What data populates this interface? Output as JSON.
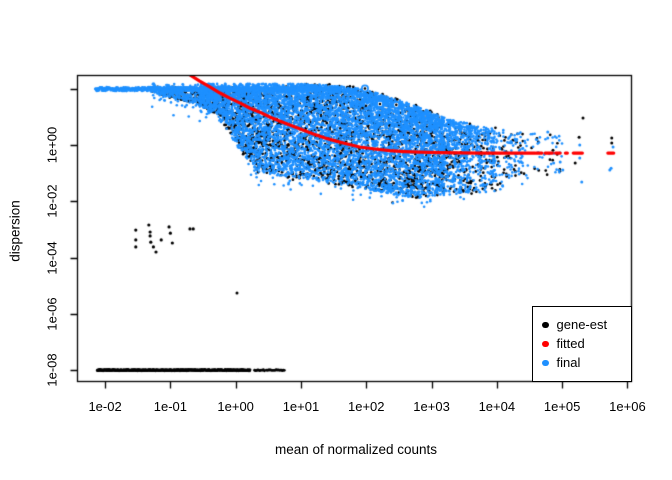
{
  "page": {
    "background": "#ffffff"
  },
  "chart_data": {
    "type": "scatter",
    "title": "",
    "xlabel": "mean of normalized counts",
    "ylabel": "dispersion",
    "x_scale": "log10",
    "y_scale": "log10",
    "xlim_log10": [
      -2.43,
      6.07
    ],
    "ylim_log10": [
      -8.42,
      2.49
    ],
    "grid": false,
    "frame_color": "#000000",
    "background": "#ffffff",
    "x_ticks": [
      {
        "log10": -2,
        "label": "1e-02"
      },
      {
        "log10": -1,
        "label": "1e-01"
      },
      {
        "log10": 0,
        "label": "1e+00"
      },
      {
        "log10": 1,
        "label": "1e+01"
      },
      {
        "log10": 2,
        "label": "1e+02"
      },
      {
        "log10": 3,
        "label": "1e+03"
      },
      {
        "log10": 4,
        "label": "1e+04"
      },
      {
        "log10": 5,
        "label": "1e+05"
      },
      {
        "log10": 6,
        "label": "1e+06"
      }
    ],
    "y_ticks": [
      {
        "log10": -8,
        "label": "1e-08"
      },
      {
        "log10": -6,
        "label": "1e-06"
      },
      {
        "log10": -4,
        "label": "1e-04"
      },
      {
        "log10": -2,
        "label": "1e-02"
      },
      {
        "log10": 0,
        "label": "1e+00"
      },
      {
        "log10": 2,
        "label": ""
      }
    ],
    "legend": {
      "position": "bottom-right",
      "items": [
        {
          "label": "gene-est",
          "color": "#000000"
        },
        {
          "label": "fitted",
          "color": "#ff0000"
        },
        {
          "label": "final",
          "color": "#1e90ff"
        }
      ]
    },
    "series": {
      "colors": {
        "gene_est": "#000000",
        "fitted": "#ff0000",
        "final": "#1e90ff"
      },
      "fitted_curve": {
        "points_log10": [
          [
            -0.7,
            2.49
          ],
          [
            -0.55,
            2.27
          ],
          [
            -0.39,
            2.06
          ],
          [
            -0.24,
            1.85
          ],
          [
            -0.09,
            1.67
          ],
          [
            0.07,
            1.49
          ],
          [
            0.22,
            1.31
          ],
          [
            0.37,
            1.17
          ],
          [
            0.53,
            0.99
          ],
          [
            0.68,
            0.85
          ],
          [
            0.83,
            0.71
          ],
          [
            0.99,
            0.57
          ],
          [
            1.19,
            0.39
          ],
          [
            1.37,
            0.25
          ],
          [
            1.54,
            0.14
          ],
          [
            1.71,
            0.04
          ],
          [
            1.9,
            -0.07
          ],
          [
            2.13,
            -0.14
          ],
          [
            2.36,
            -0.2
          ],
          [
            2.59,
            -0.23
          ],
          [
            2.82,
            -0.25
          ],
          [
            3.13,
            -0.27
          ],
          [
            3.44,
            -0.28
          ],
          [
            3.74,
            -0.284
          ],
          [
            4.05,
            -0.284
          ],
          [
            4.58,
            -0.284
          ]
        ],
        "dash_segments_log10": [
          [
            4.6,
            4.69
          ],
          [
            4.74,
            4.85
          ],
          [
            4.9,
            4.97
          ],
          [
            5.05,
            5.08
          ],
          [
            5.17,
            5.31
          ],
          [
            5.7,
            5.79
          ]
        ],
        "dash_y_log10": -0.284,
        "line_width": 3.2
      },
      "cloud": {
        "seed": 20240613,
        "blue_count": 7600,
        "black_count": 2400,
        "point_radius": 1.3,
        "envelope_t": [
          -1.3,
          -1.0,
          -0.55,
          -0.19,
          0.02,
          0.33,
          0.76,
          1.2,
          1.6,
          2.0,
          2.4,
          2.8,
          3.2,
          3.6,
          4.0,
          4.4
        ],
        "envelope_top": [
          2.06,
          2.06,
          2.06,
          2.06,
          2.06,
          2.06,
          2.06,
          2.04,
          1.99,
          1.85,
          1.55,
          1.24,
          0.85,
          0.64,
          0.46,
          0.32
        ],
        "envelope_bot": [
          1.9,
          1.7,
          1.4,
          1.0,
          0.18,
          -0.71,
          -0.92,
          -1.03,
          -1.21,
          -1.35,
          -1.53,
          -1.67,
          -1.56,
          -1.49,
          -1.42,
          -1.0
        ],
        "density_segments": [
          [
            -1.3,
            -0.55,
            0.25
          ],
          [
            -0.55,
            0.02,
            0.7
          ],
          [
            0.02,
            3.2,
            1.0
          ],
          [
            3.2,
            3.6,
            0.55
          ],
          [
            3.6,
            4.0,
            0.3
          ],
          [
            4.0,
            4.4,
            0.12
          ],
          [
            4.4,
            5.0,
            0.04
          ]
        ],
        "cap_band": {
          "t0": -2.15,
          "t1": 1.55,
          "d0": 1.92,
          "d1": 2.06,
          "count": 750
        },
        "cap_black_dashes": {
          "t0": -1.05,
          "t1": 0.3,
          "d0": 1.68,
          "d1": 1.88,
          "count": 55
        }
      },
      "gene_est_floor": {
        "y_log10": -8,
        "solid_t0": -2.12,
        "solid_t1": 0.22,
        "solid_count": 470,
        "sparse_groups": [
          [
            0.29,
            0.37,
            6
          ],
          [
            0.39,
            0.44,
            4
          ],
          [
            0.47,
            0.55,
            6
          ],
          [
            0.57,
            0.64,
            5
          ],
          [
            0.655,
            0.7,
            4
          ],
          [
            0.715,
            0.745,
            3
          ]
        ]
      },
      "gene_est_low_cluster": [
        [
          -1.53,
          -3.02
        ],
        [
          -1.53,
          -3.37
        ],
        [
          -1.53,
          -3.62
        ],
        [
          -1.33,
          -2.84
        ],
        [
          -1.31,
          -3.09
        ],
        [
          -1.31,
          -3.23
        ],
        [
          -1.3,
          -3.45
        ],
        [
          -1.26,
          -3.62
        ],
        [
          -1.22,
          -3.8
        ],
        [
          -1.14,
          -3.37
        ],
        [
          -1.02,
          -2.91
        ],
        [
          -1.0,
          -3.13
        ],
        [
          -0.97,
          -3.48
        ],
        [
          -0.7,
          -2.98
        ],
        [
          -0.65,
          -2.98
        ]
      ],
      "gene_est_isolated": [
        [
          0.02,
          -5.26
        ]
      ],
      "outliers_circled_log10": [
        [
          1.98,
          2.01
        ],
        [
          2.21,
          1.46
        ],
        [
          2.46,
          1.43
        ]
      ],
      "far_right_black": [
        [
          4.86,
          -0.18
        ],
        [
          5.2,
          -0.64
        ],
        [
          5.26,
          0.28
        ],
        [
          5.32,
          0.96
        ],
        [
          5.76,
          0.25
        ],
        [
          5.76,
          0.07
        ]
      ],
      "far_right_blue": [
        [
          4.78,
          0.46
        ],
        [
          4.78,
          0.25
        ],
        [
          4.87,
          -0.64
        ],
        [
          4.97,
          -0.6
        ],
        [
          5.01,
          -0.89
        ],
        [
          5.27,
          0.0
        ],
        [
          5.27,
          -0.46
        ],
        [
          5.3,
          -1.31
        ],
        [
          5.73,
          -0.89
        ],
        [
          5.75,
          -0.82
        ],
        [
          5.78,
          -0.07
        ]
      ]
    }
  }
}
